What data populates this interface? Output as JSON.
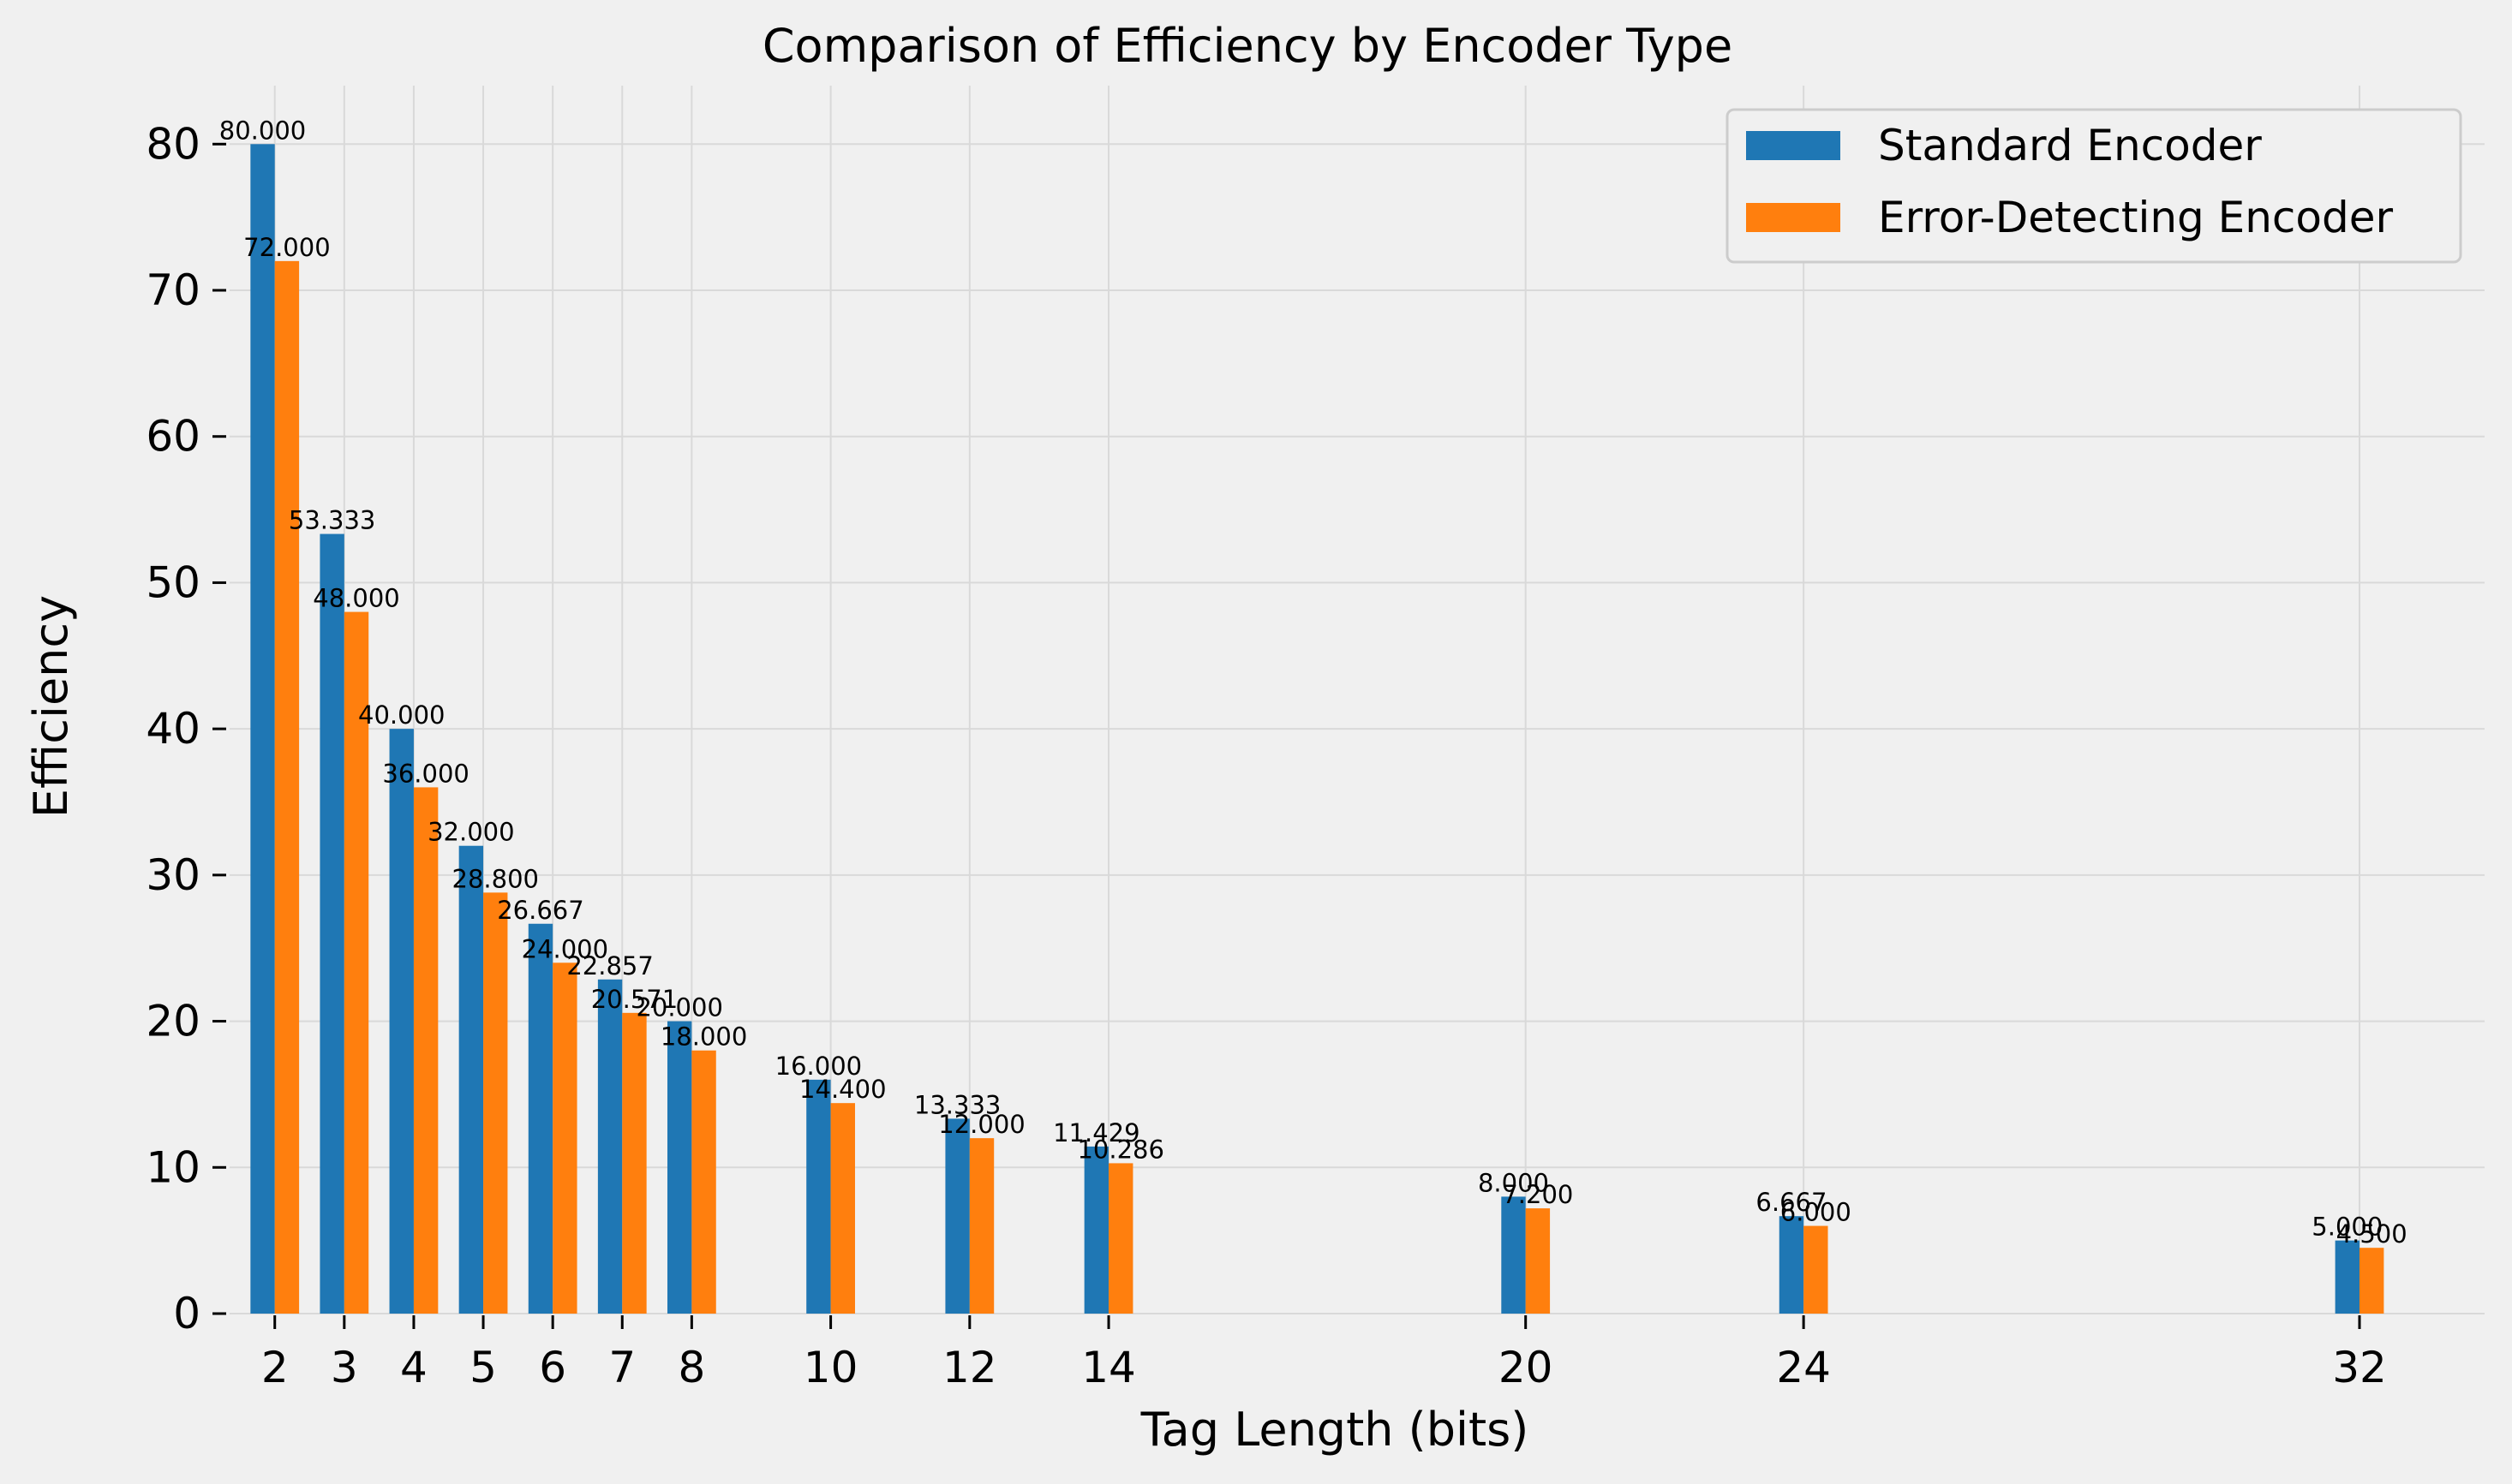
{
  "chart_data": {
    "type": "bar",
    "title": "Comparison of Efficiency by Encoder Type",
    "xlabel": "Tag Length (bits)",
    "ylabel": "Efficiency",
    "x": [
      2,
      3,
      4,
      5,
      6,
      7,
      8,
      10,
      12,
      14,
      20,
      24,
      32
    ],
    "x_tick_labels": [
      "2",
      "3",
      "4",
      "5",
      "6",
      "7",
      "8",
      "10",
      "12",
      "14",
      "20",
      "24",
      "32"
    ],
    "xlim": [
      1.35,
      33.8
    ],
    "ylim": [
      0,
      84
    ],
    "y_ticks": [
      0,
      10,
      20,
      30,
      40,
      50,
      60,
      70,
      80
    ],
    "y_tick_labels": [
      "0",
      "10",
      "20",
      "30",
      "40",
      "50",
      "60",
      "70",
      "80"
    ],
    "grid": true,
    "legend_position": "top-right",
    "series": [
      {
        "name": "Standard Encoder",
        "color": "#1f77b4",
        "values": [
          80.0,
          53.333,
          40.0,
          32.0,
          26.667,
          22.857,
          20.0,
          16.0,
          13.333,
          11.429,
          8.0,
          6.667,
          5.0
        ],
        "labels": [
          "80.000",
          "53.333",
          "40.000",
          "32.000",
          "26.667",
          "22.857",
          "20.000",
          "16.000",
          "13.333",
          "11.429",
          "8.000",
          "6.667",
          "5.000"
        ]
      },
      {
        "name": "Error-Detecting Encoder",
        "color": "#ff7f0e",
        "values": [
          72.0,
          48.0,
          36.0,
          28.8,
          24.0,
          20.571,
          18.0,
          14.4,
          12.0,
          10.286,
          7.2,
          6.0,
          4.5
        ],
        "labels": [
          "72.000",
          "48.000",
          "36.000",
          "28.800",
          "24.000",
          "20.571",
          "18.000",
          "14.400",
          "12.000",
          "10.286",
          "7.200",
          "6.000",
          "4.500"
        ]
      }
    ]
  }
}
